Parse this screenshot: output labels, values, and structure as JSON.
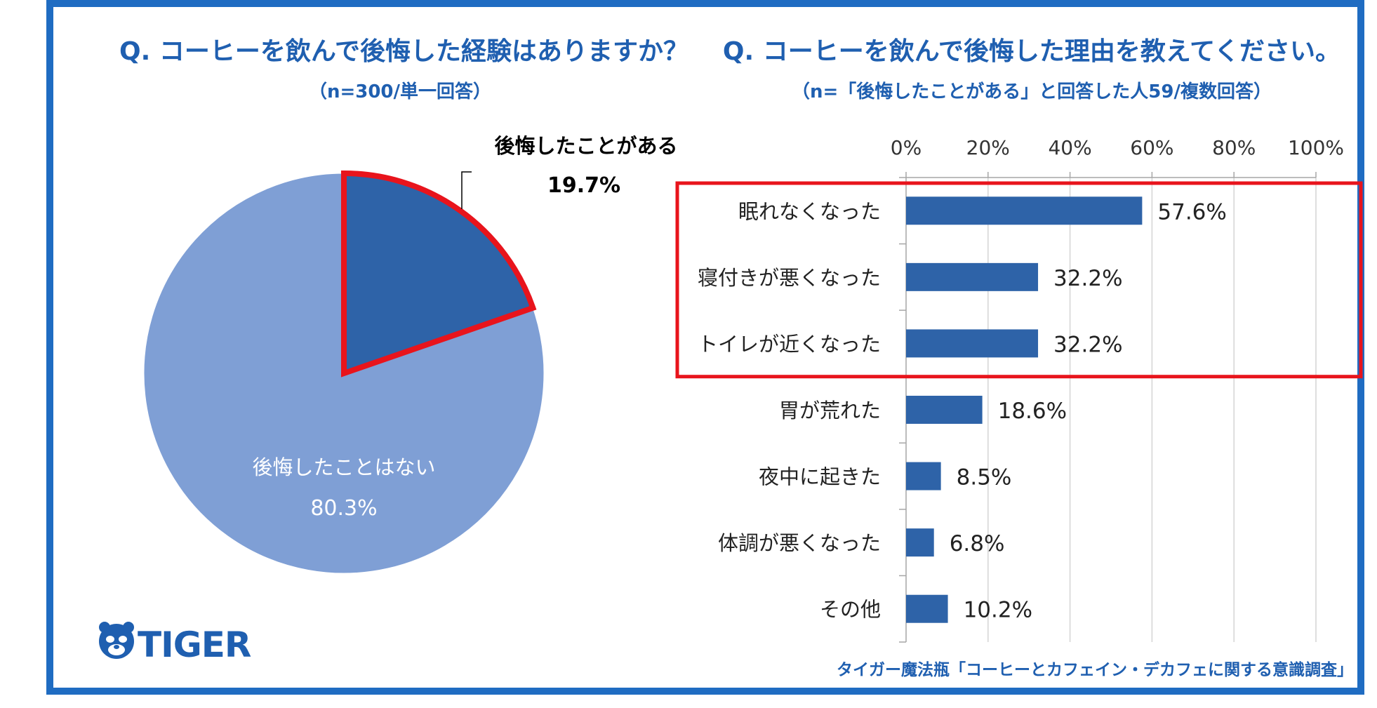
{
  "left_chart": {
    "title": "Q. コーヒーを飲んで後悔した経験はありますか？",
    "subtitle": "（n=300/単一回答）"
  },
  "right_chart": {
    "title": "Q. コーヒーを飲んで後悔した理由を教えてください。",
    "subtitle": "（n=「後悔したことがある」と回答した人59/複数回答）"
  },
  "colors": {
    "frame": "#1f6cc2",
    "title": "#1f5fb0",
    "pie_main": "#7f9fd5",
    "pie_slice": "#2e63a8",
    "highlight": "#e8141c",
    "bar": "#2e63a8"
  },
  "chart_data": [
    {
      "type": "pie",
      "slices": [
        {
          "label": "後悔したことがある",
          "value": 19.7,
          "value_label": "19.7%"
        },
        {
          "label": "後悔したことはない",
          "value": 80.3,
          "value_label": "80.3%"
        }
      ],
      "highlighted_slice": "後悔したことがある"
    },
    {
      "type": "bar",
      "orientation": "horizontal",
      "categories": [
        "眠れなくなった",
        "寝付きが悪くなった",
        "トイレが近くなった",
        "胃が荒れた",
        "夜中に起きた",
        "体調が悪くなった",
        "その他"
      ],
      "values": [
        57.6,
        32.2,
        32.2,
        18.6,
        8.5,
        6.8,
        10.2
      ],
      "value_labels": [
        "57.6%",
        "32.2%",
        "32.2%",
        "18.6%",
        "8.5%",
        "6.8%",
        "10.2%"
      ],
      "xlim": [
        0,
        100
      ],
      "xticks": [
        "0%",
        "20%",
        "40%",
        "60%",
        "80%",
        "100%"
      ],
      "grid": true,
      "highlighted_categories": [
        "眠れなくなった",
        "寝付きが悪くなった",
        "トイレが近くなった"
      ]
    }
  ],
  "logo": {
    "text": "TIGER"
  },
  "source": "タイガー魔法瓶「コーヒーとカフェイン・デカフェに関する意識調査」"
}
